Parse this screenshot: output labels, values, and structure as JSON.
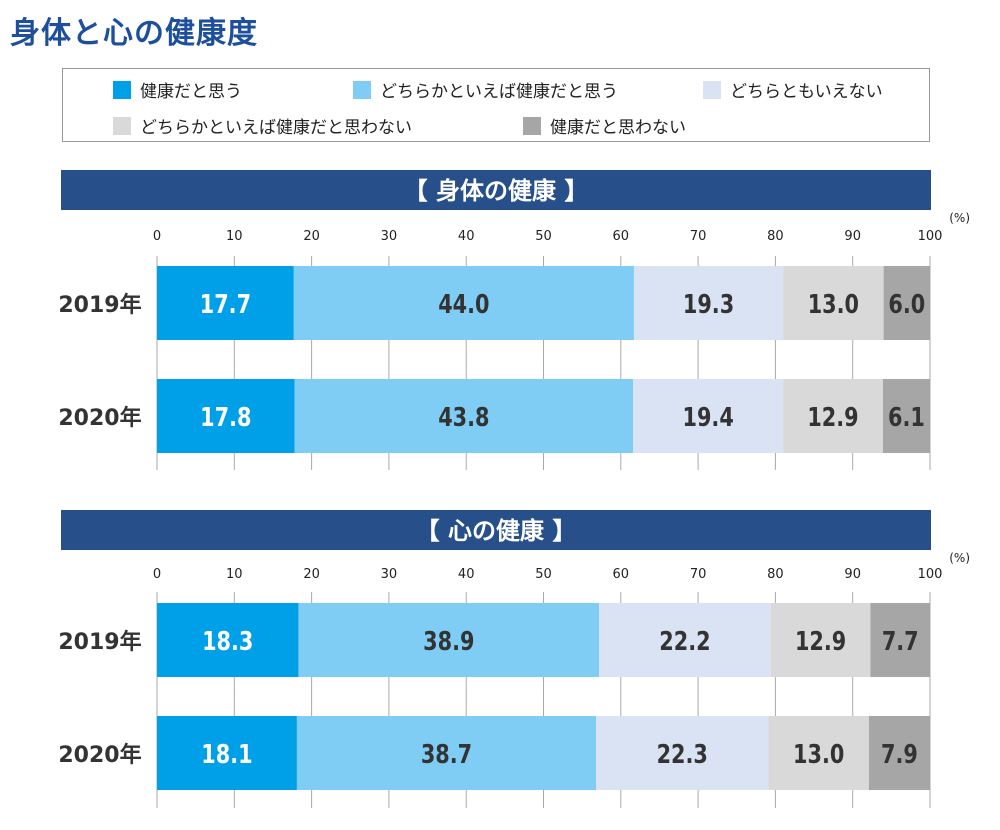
{
  "title": "身体と心の健康度",
  "legend": [
    {
      "label": "健康だと思う",
      "color": "#00a0e9"
    },
    {
      "label": "どちらかといえば健康だと思う",
      "color": "#7fcdf4"
    },
    {
      "label": "どちらともいえない",
      "color": "#d9e3f3"
    },
    {
      "label": "どちらかといえば健康だと思わない",
      "color": "#d9d9d9"
    },
    {
      "label": "健康だと思わない",
      "color": "#a6a6a6"
    }
  ],
  "chart_data": [
    {
      "type": "bar",
      "orientation": "horizontal-stacked",
      "title": "【 身体の健康 】",
      "unit": "(%)",
      "xlim": [
        0,
        100
      ],
      "ticks": [
        "0",
        "10",
        "20",
        "30",
        "40",
        "50",
        "60",
        "70",
        "80",
        "90",
        "100"
      ],
      "grid": true,
      "categories": [
        "2019年",
        "2020年"
      ],
      "series": [
        {
          "name": "健康だと思う",
          "values": [
            17.7,
            17.8
          ]
        },
        {
          "name": "どちらかといえば健康だと思う",
          "values": [
            44.0,
            43.8
          ]
        },
        {
          "name": "どちらともいえない",
          "values": [
            19.3,
            19.4
          ]
        },
        {
          "name": "どちらかといえば健康だと思わない",
          "values": [
            13.0,
            12.9
          ]
        },
        {
          "name": "健康だと思わない",
          "values": [
            6.0,
            6.1
          ]
        }
      ]
    },
    {
      "type": "bar",
      "orientation": "horizontal-stacked",
      "title": "【 心の健康 】",
      "unit": "(%)",
      "xlim": [
        0,
        100
      ],
      "ticks": [
        "0",
        "10",
        "20",
        "30",
        "40",
        "50",
        "60",
        "70",
        "80",
        "90",
        "100"
      ],
      "grid": true,
      "categories": [
        "2019年",
        "2020年"
      ],
      "series": [
        {
          "name": "健康だと思う",
          "values": [
            18.3,
            18.1
          ]
        },
        {
          "name": "どちらかといえば健康だと思う",
          "values": [
            38.9,
            38.7
          ]
        },
        {
          "name": "どちらともいえない",
          "values": [
            22.2,
            22.3
          ]
        },
        {
          "name": "どちらかといえば健康だと思わない",
          "values": [
            12.9,
            13.0
          ]
        },
        {
          "name": "健康だと思わない",
          "values": [
            7.7,
            7.9
          ]
        }
      ]
    }
  ],
  "colors": {
    "band": "#274f8a",
    "title": "#1d4f9c",
    "grid": "#aaaaaa"
  }
}
